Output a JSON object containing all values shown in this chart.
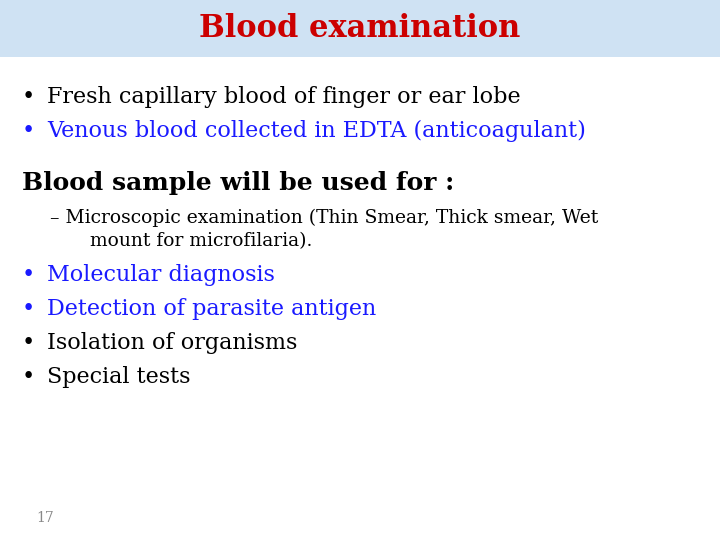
{
  "title": "Blood examination",
  "title_color": "#cc0000",
  "title_bg_color": "#cfe2f3",
  "title_fontsize": 22,
  "title_bold": true,
  "bg_color": "#ffffff",
  "bullet1_text": "Fresh capillary blood of finger or ear lobe",
  "bullet1_color": "#000000",
  "bullet2_text": "Venous blood collected in EDTA (anticoagulant)",
  "bullet2_color": "#1a1aff",
  "section_header": "Blood sample will be used for :",
  "section_header_color": "#000000",
  "dash_line1": "– Microscopic examination (Thin Smear, Thick smear, Wet",
  "dash_line2": "   mount for microfilaria).",
  "dash_color": "#000000",
  "sub_bullets": [
    {
      "text": "Molecular diagnosis",
      "color": "#1a1aff"
    },
    {
      "text": "Detection of parasite antigen",
      "color": "#1a1aff"
    },
    {
      "text": "Isolation of organisms",
      "color": "#000000"
    },
    {
      "text": "Special tests",
      "color": "#000000"
    }
  ],
  "page_number": "17",
  "page_number_color": "#888888",
  "bullet_fontsize": 16,
  "section_fontsize": 18,
  "sub_bullet_fontsize": 16,
  "dash_fontsize": 13.5
}
